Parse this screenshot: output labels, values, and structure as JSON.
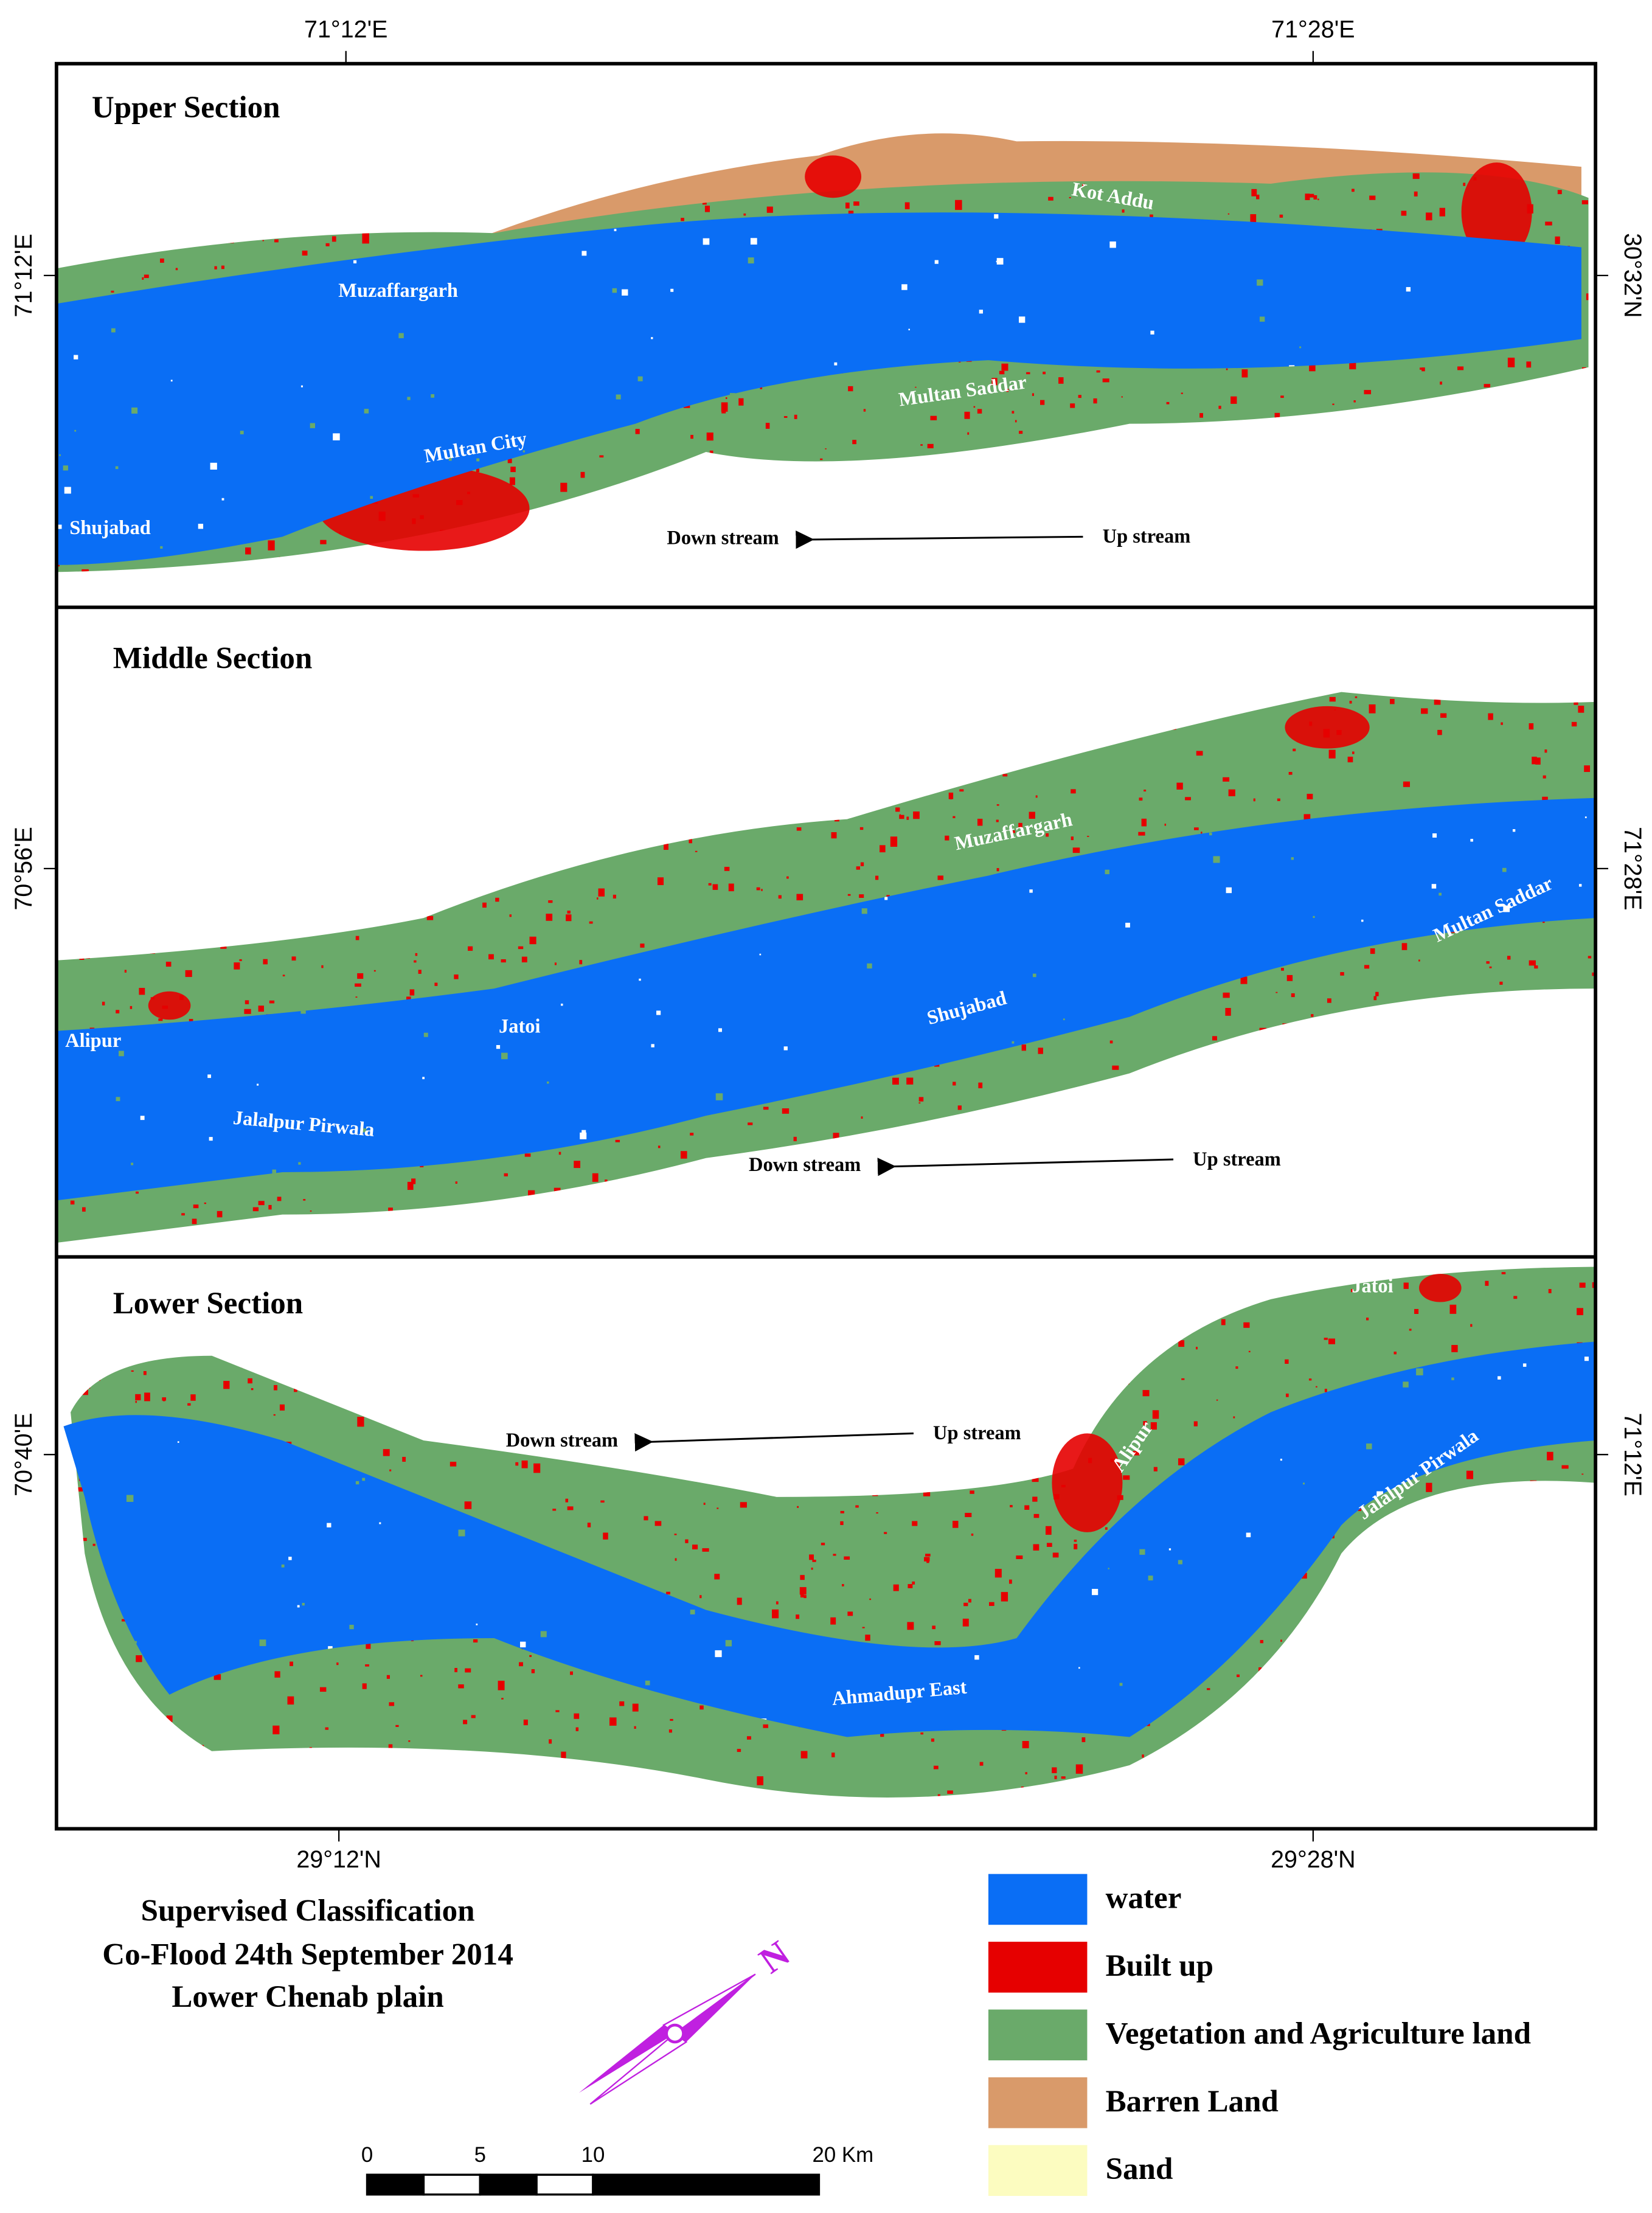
{
  "coordinates": {
    "top": [
      "71°12'E",
      "71°28'E"
    ],
    "bottom": [
      "29°12'N",
      "29°28'N"
    ],
    "left": [
      "71°12'E",
      "70°56'E",
      "70°40'E"
    ],
    "right": [
      "30°32'N",
      "71°28'E",
      "71°12'E"
    ]
  },
  "sections": [
    {
      "title": "Upper Section",
      "places": [
        "Muzaffargarh",
        "Kot Addu",
        "Multan Saddar",
        "Multan City",
        "Shujabad"
      ],
      "downstream": "Down stream",
      "upstream": "Up stream"
    },
    {
      "title": "Middle Section",
      "places": [
        "Muzaffargarh",
        "Multan Saddar",
        "Jatoi",
        "Alipur",
        "Shujabad",
        "Jalalpur Pirwala"
      ],
      "downstream": "Down stream",
      "upstream": "Up stream"
    },
    {
      "title": "Lower Section",
      "places": [
        "Jatoi",
        "Alipur",
        "Jalalpur Pirwala",
        "Ahmadupr East"
      ],
      "downstream": "Down stream",
      "upstream": "Up stream"
    }
  ],
  "title": [
    "Supervised Classification",
    "Co-Flood 24th September 2014",
    "Lower Chenab plain"
  ],
  "legend": [
    {
      "label": "water",
      "color": "#0a6ef5"
    },
    {
      "label": "Built up",
      "color": "#e60000"
    },
    {
      "label": "Vegetation and Agriculture land",
      "color": "#6aaa6a"
    },
    {
      "label": "Barren Land",
      "color": "#d99a6a"
    },
    {
      "label": "Sand",
      "color": "#fcfcc0"
    }
  ],
  "north": "N",
  "scale_bar": [
    "0",
    "5",
    "10",
    "20 Km"
  ]
}
